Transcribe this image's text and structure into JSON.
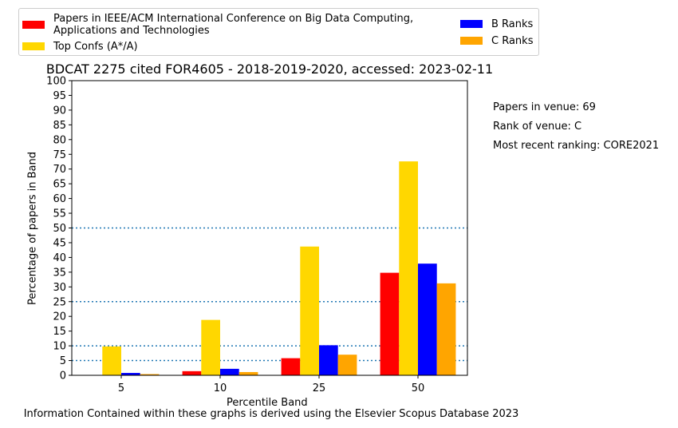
{
  "title": "BDCAT 2275 cited FOR4605 - 2018-2019-2020, accessed: 2023-02-11",
  "footer": "Information Contained within these graphs is derived using the Elsevier Scopus Database 2023",
  "side_info": {
    "papers": "Papers in venue: 69",
    "rank": "Rank of venue: C",
    "recent": "Most recent ranking: CORE2021"
  },
  "legend": {
    "items": [
      {
        "label": "Papers in IEEE/ACM International Conference on Big Data Computing, Applications and Technologies",
        "color": "#ff0000"
      },
      {
        "label": "Top Confs (A*/A)",
        "color": "#ffd700"
      },
      {
        "label": "B Ranks",
        "color": "#0000ff"
      },
      {
        "label": "C Ranks",
        "color": "#ffa500"
      }
    ]
  },
  "chart_data": {
    "type": "bar",
    "title": "BDCAT 2275 cited FOR4605 - 2018-2019-2020, accessed: 2023-02-11",
    "xlabel": "Percentile Band",
    "ylabel": "Percentage of papers in Band",
    "categories": [
      "5",
      "10",
      "25",
      "50"
    ],
    "ylim": [
      0,
      100
    ],
    "yticks": [
      0,
      5,
      10,
      15,
      20,
      25,
      30,
      35,
      40,
      45,
      50,
      55,
      60,
      65,
      70,
      75,
      80,
      85,
      90,
      95,
      100
    ],
    "reference_lines": [
      5,
      10,
      25,
      50
    ],
    "series": [
      {
        "name": "Papers in IEEE/ACM International Conference on Big Data Computing, Applications and Technologies",
        "color": "#ff0000",
        "values": [
          0,
          1.4,
          5.8,
          34.8
        ]
      },
      {
        "name": "Top Confs (A*/A)",
        "color": "#ffd700",
        "values": [
          9.8,
          18.8,
          43.7,
          72.6
        ]
      },
      {
        "name": "B Ranks",
        "color": "#0000ff",
        "values": [
          0.8,
          2.2,
          10.2,
          37.9
        ]
      },
      {
        "name": "C Ranks",
        "color": "#ffa500",
        "values": [
          0.4,
          1.1,
          7.0,
          31.2
        ]
      }
    ],
    "legend_position": "top-left outside"
  }
}
